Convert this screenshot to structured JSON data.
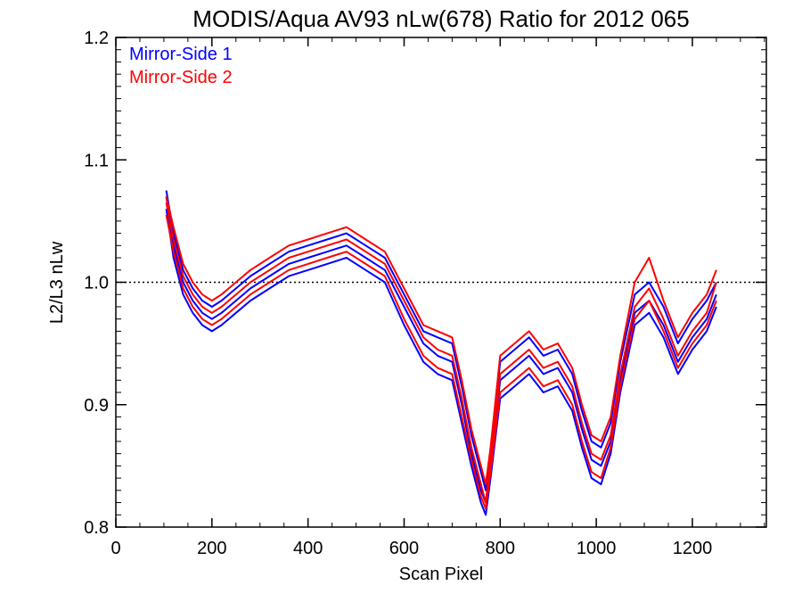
{
  "chart_data": {
    "type": "line",
    "title": "MODIS/Aqua AV93 nLw(678) Ratio for 2012 065",
    "xlabel": "Scan Pixel",
    "ylabel": "L2/L3 nLw",
    "xlim": [
      0,
      1354
    ],
    "ylim": [
      0.8,
      1.2
    ],
    "x_ticks": [
      "0",
      "200",
      "400",
      "600",
      "800",
      "1000",
      "1200"
    ],
    "y_ticks": [
      "0.8",
      "0.9",
      "1.0",
      "1.1",
      "1.2"
    ],
    "reference_line": {
      "y": 1.0,
      "style": "dotted"
    },
    "legend": {
      "placement": "top-left",
      "entries": [
        "Mirror-Side 1",
        "Mirror-Side 2"
      ]
    },
    "colors": {
      "Mirror-Side 1": "#0000ff",
      "Mirror-Side 2": "#ff0000"
    },
    "x": [
      105,
      120,
      140,
      160,
      180,
      200,
      220,
      250,
      280,
      320,
      360,
      400,
      440,
      480,
      520,
      560,
      600,
      640,
      670,
      700,
      720,
      740,
      760,
      770,
      780,
      800,
      830,
      860,
      890,
      920,
      950,
      970,
      990,
      1010,
      1030,
      1050,
      1080,
      1110,
      1140,
      1170,
      1200,
      1230,
      1250
    ],
    "series": [
      {
        "name": "Mirror-Side 1",
        "values": [
          1.07,
          1.03,
          1.0,
          0.985,
          0.975,
          0.97,
          0.975,
          0.985,
          0.995,
          1.005,
          1.015,
          1.02,
          1.025,
          1.03,
          1.02,
          1.01,
          0.98,
          0.95,
          0.94,
          0.935,
          0.9,
          0.86,
          0.83,
          0.82,
          0.85,
          0.92,
          0.93,
          0.94,
          0.925,
          0.93,
          0.91,
          0.88,
          0.855,
          0.85,
          0.87,
          0.92,
          0.975,
          0.985,
          0.965,
          0.935,
          0.955,
          0.97,
          0.99
        ]
      },
      {
        "name": "Mirror-Side 1",
        "values": [
          1.06,
          1.02,
          0.99,
          0.975,
          0.965,
          0.96,
          0.965,
          0.975,
          0.985,
          0.995,
          1.005,
          1.01,
          1.015,
          1.02,
          1.01,
          1.0,
          0.965,
          0.935,
          0.925,
          0.92,
          0.885,
          0.85,
          0.82,
          0.81,
          0.84,
          0.905,
          0.915,
          0.925,
          0.91,
          0.915,
          0.895,
          0.865,
          0.84,
          0.835,
          0.86,
          0.91,
          0.965,
          0.975,
          0.955,
          0.925,
          0.945,
          0.96,
          0.98
        ]
      },
      {
        "name": "Mirror-Side 1",
        "values": [
          1.075,
          1.04,
          1.01,
          0.995,
          0.985,
          0.98,
          0.985,
          0.995,
          1.005,
          1.015,
          1.025,
          1.03,
          1.035,
          1.04,
          1.03,
          1.02,
          0.99,
          0.96,
          0.955,
          0.95,
          0.915,
          0.875,
          0.845,
          0.83,
          0.86,
          0.935,
          0.945,
          0.955,
          0.94,
          0.945,
          0.925,
          0.895,
          0.87,
          0.865,
          0.885,
          0.935,
          0.99,
          1.0,
          0.98,
          0.95,
          0.97,
          0.985,
          1.0
        ]
      },
      {
        "name": "Mirror-Side 2",
        "values": [
          1.065,
          1.035,
          1.005,
          0.99,
          0.98,
          0.975,
          0.98,
          0.99,
          1.0,
          1.01,
          1.02,
          1.025,
          1.03,
          1.035,
          1.025,
          1.015,
          0.985,
          0.955,
          0.945,
          0.94,
          0.905,
          0.865,
          0.835,
          0.82,
          0.855,
          0.925,
          0.935,
          0.945,
          0.93,
          0.935,
          0.915,
          0.885,
          0.86,
          0.855,
          0.875,
          0.925,
          0.98,
          0.995,
          0.97,
          0.94,
          0.96,
          0.975,
          1.0
        ]
      },
      {
        "name": "Mirror-Side 2",
        "values": [
          1.055,
          1.025,
          0.995,
          0.98,
          0.97,
          0.965,
          0.97,
          0.98,
          0.99,
          1.0,
          1.01,
          1.015,
          1.02,
          1.025,
          1.015,
          1.005,
          0.97,
          0.94,
          0.93,
          0.925,
          0.89,
          0.855,
          0.825,
          0.815,
          0.845,
          0.91,
          0.92,
          0.93,
          0.915,
          0.92,
          0.9,
          0.87,
          0.845,
          0.84,
          0.865,
          0.915,
          0.97,
          0.985,
          0.96,
          0.93,
          0.95,
          0.965,
          0.985
        ]
      },
      {
        "name": "Mirror-Side 2",
        "values": [
          1.07,
          1.045,
          1.015,
          1.0,
          0.99,
          0.985,
          0.99,
          1.0,
          1.01,
          1.02,
          1.03,
          1.035,
          1.04,
          1.045,
          1.035,
          1.025,
          0.995,
          0.965,
          0.96,
          0.955,
          0.92,
          0.88,
          0.85,
          0.835,
          0.865,
          0.94,
          0.95,
          0.96,
          0.945,
          0.95,
          0.93,
          0.9,
          0.875,
          0.87,
          0.89,
          0.94,
          1.0,
          1.02,
          0.985,
          0.955,
          0.975,
          0.99,
          1.01
        ]
      }
    ]
  }
}
